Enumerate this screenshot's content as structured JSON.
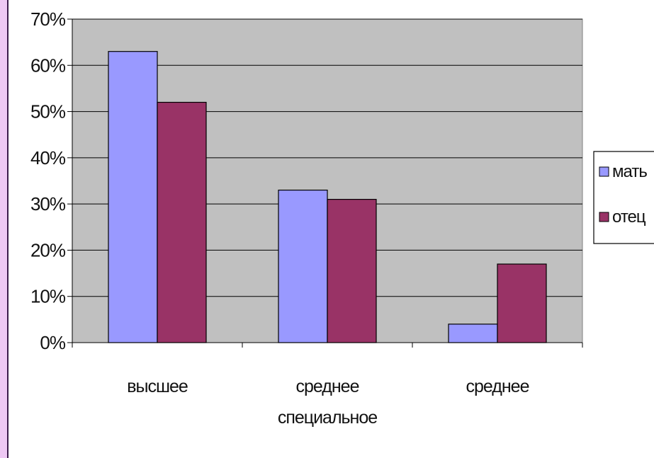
{
  "chart_data": {
    "type": "bar",
    "categories": [
      [
        "высшее"
      ],
      [
        "среднее",
        "специальное"
      ],
      [
        "среднее"
      ]
    ],
    "series": [
      {
        "name": "мать",
        "values": [
          63,
          33,
          4
        ],
        "color": "#9999ff"
      },
      {
        "name": "отец",
        "values": [
          52,
          31,
          17
        ],
        "color": "#993366"
      }
    ],
    "ylim": [
      0,
      70
    ],
    "ytick_step": 10,
    "ytick_labels": [
      "0%",
      "10%",
      "20%",
      "30%",
      "40%",
      "50%",
      "60%",
      "70%"
    ],
    "plot_background": "#c0c0c0",
    "grid": true,
    "legend_position": "right"
  }
}
